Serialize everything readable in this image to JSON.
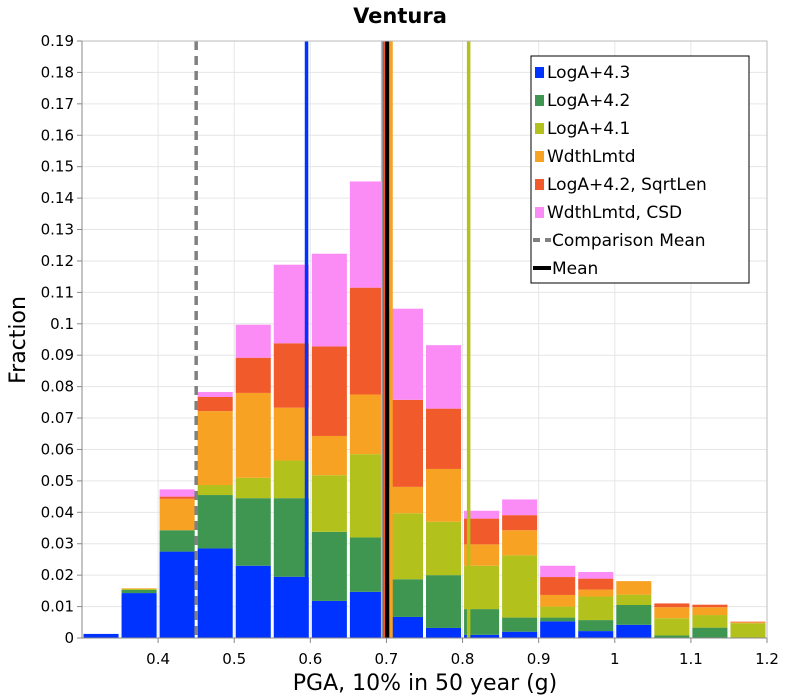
{
  "chart_data": {
    "type": "bar",
    "stacked": true,
    "title": "Ventura",
    "xlabel": "PGA, 10% in 50 year (g)",
    "ylabel": "Fraction",
    "xlim": [
      0.3,
      1.2
    ],
    "ylim": [
      0,
      0.19
    ],
    "grid": true,
    "legend_position": "top-right",
    "x_ticks": [
      {
        "value": 0.4,
        "label": "0.4"
      },
      {
        "value": 0.5,
        "label": "0.5"
      },
      {
        "value": 0.6,
        "label": "0.6"
      },
      {
        "value": 0.7,
        "label": "0.7"
      },
      {
        "value": 0.8,
        "label": "0.8"
      },
      {
        "value": 0.9,
        "label": "0.9"
      },
      {
        "value": 1.0,
        "label": "1"
      },
      {
        "value": 1.1,
        "label": "1.1"
      },
      {
        "value": 1.2,
        "label": "1.2"
      }
    ],
    "y_ticks": [
      {
        "value": 0,
        "label": "0"
      },
      {
        "value": 0.01,
        "label": "0.01"
      },
      {
        "value": 0.02,
        "label": "0.02"
      },
      {
        "value": 0.03,
        "label": "0.03"
      },
      {
        "value": 0.04,
        "label": "0.04"
      },
      {
        "value": 0.05,
        "label": "0.05"
      },
      {
        "value": 0.06,
        "label": "0.06"
      },
      {
        "value": 0.07,
        "label": "0.07"
      },
      {
        "value": 0.08,
        "label": "0.08"
      },
      {
        "value": 0.09,
        "label": "0.09"
      },
      {
        "value": 0.1,
        "label": "0.1"
      },
      {
        "value": 0.11,
        "label": "0.11"
      },
      {
        "value": 0.12,
        "label": "0.12"
      },
      {
        "value": 0.13,
        "label": "0.13"
      },
      {
        "value": 0.14,
        "label": "0.14"
      },
      {
        "value": 0.15,
        "label": "0.15"
      },
      {
        "value": 0.16,
        "label": "0.16"
      },
      {
        "value": 0.17,
        "label": "0.17"
      },
      {
        "value": 0.18,
        "label": "0.18"
      },
      {
        "value": 0.19,
        "label": "0.19"
      }
    ],
    "bins": [
      {
        "x0": 0.3,
        "x1": 0.35
      },
      {
        "x0": 0.35,
        "x1": 0.4
      },
      {
        "x0": 0.4,
        "x1": 0.45
      },
      {
        "x0": 0.45,
        "x1": 0.5
      },
      {
        "x0": 0.5,
        "x1": 0.55
      },
      {
        "x0": 0.55,
        "x1": 0.6
      },
      {
        "x0": 0.6,
        "x1": 0.65
      },
      {
        "x0": 0.65,
        "x1": 0.7
      },
      {
        "x0": 0.7,
        "x1": 0.75
      },
      {
        "x0": 0.75,
        "x1": 0.8
      },
      {
        "x0": 0.8,
        "x1": 0.85
      },
      {
        "x0": 0.85,
        "x1": 0.9
      },
      {
        "x0": 0.9,
        "x1": 0.95
      },
      {
        "x0": 0.95,
        "x1": 1.0
      },
      {
        "x0": 1.0,
        "x1": 1.05
      },
      {
        "x0": 1.05,
        "x1": 1.1
      },
      {
        "x0": 1.1,
        "x1": 1.15
      },
      {
        "x0": 1.15,
        "x1": 1.2
      }
    ],
    "series": [
      {
        "name": "LogA+4.3",
        "color": "#0033ff",
        "values": [
          0.0013,
          0.0143,
          0.0275,
          0.0285,
          0.023,
          0.0195,
          0.0118,
          0.0147,
          0.0067,
          0.0032,
          0.001,
          0.002,
          0.0053,
          0.0022,
          0.0042,
          0.0,
          0.0,
          0.0
        ]
      },
      {
        "name": "LogA+4.2",
        "color": "#3f9651",
        "values": [
          0.0,
          0.001,
          0.0068,
          0.017,
          0.0215,
          0.025,
          0.022,
          0.0173,
          0.012,
          0.0168,
          0.0082,
          0.0045,
          0.0012,
          0.0035,
          0.0063,
          0.0008,
          0.0033,
          0.0
        ]
      },
      {
        "name": "LogA+4.1",
        "color": "#b3c11d",
        "values": [
          0.0,
          0.0003,
          0.0,
          0.0032,
          0.0065,
          0.012,
          0.018,
          0.0265,
          0.021,
          0.017,
          0.0138,
          0.0198,
          0.0035,
          0.0075,
          0.0033,
          0.0055,
          0.004,
          0.0047
        ]
      },
      {
        "name": "WdthLmtd",
        "color": "#f7a223",
        "values": [
          0.0,
          0.0002,
          0.01,
          0.0235,
          0.027,
          0.0168,
          0.0125,
          0.019,
          0.0084,
          0.0168,
          0.0068,
          0.008,
          0.0037,
          0.0022,
          0.0043,
          0.0035,
          0.0025,
          0.0003
        ]
      },
      {
        "name": "LogA+4.2, SqrtLen",
        "color": "#f15a2a",
        "values": [
          0.0,
          0.0,
          0.0007,
          0.0045,
          0.0112,
          0.0205,
          0.0285,
          0.034,
          0.0277,
          0.0192,
          0.0082,
          0.0048,
          0.0057,
          0.0035,
          0.0,
          0.0012,
          0.0008,
          0.0002
        ]
      },
      {
        "name": "WdthLmtd, CSD",
        "color": "#fb8cf6",
        "values": [
          0.0,
          0.0,
          0.0023,
          0.0016,
          0.0105,
          0.025,
          0.0295,
          0.0338,
          0.029,
          0.0202,
          0.0025,
          0.005,
          0.0036,
          0.0021,
          0.0,
          0.0,
          0.0,
          0.0
        ]
      }
    ],
    "vertical_lines": [
      {
        "name": "LogA+4.3",
        "x": 0.595,
        "color": "#0033ff",
        "style": "solid"
      },
      {
        "name": "LogA+4.1",
        "x": 0.808,
        "color": "#b3c11d",
        "style": "solid"
      },
      {
        "name": "WdthLmtd, CSD",
        "x": 0.695,
        "color": "#fb8cf6",
        "style": "solid"
      },
      {
        "name": "LogA+4.2",
        "x": 0.697,
        "color": "#3f9651",
        "style": "solid"
      },
      {
        "name": "LogA+4.2, SqrtLen",
        "x": 0.699,
        "color": "#f15a2a",
        "style": "solid"
      },
      {
        "name": "WdthLmtd",
        "x": 0.706,
        "color": "#f7a223",
        "style": "solid"
      },
      {
        "name": "Mean",
        "x": 0.701,
        "color": "#000000",
        "style": "solid"
      },
      {
        "name": "Comparison Mean",
        "x": 0.45,
        "color": "#808080",
        "style": "dashed"
      }
    ],
    "legend": [
      {
        "label": "LogA+4.3",
        "kind": "box",
        "color": "#0033ff"
      },
      {
        "label": "LogA+4.2",
        "kind": "box",
        "color": "#3f9651"
      },
      {
        "label": "LogA+4.1",
        "kind": "box",
        "color": "#b3c11d"
      },
      {
        "label": "WdthLmtd",
        "kind": "box",
        "color": "#f7a223"
      },
      {
        "label": "LogA+4.2, SqrtLen",
        "kind": "box",
        "color": "#f15a2a"
      },
      {
        "label": "WdthLmtd, CSD",
        "kind": "box",
        "color": "#fb8cf6"
      },
      {
        "label": "Comparison Mean",
        "kind": "dashed",
        "color": "#808080"
      },
      {
        "label": "Mean",
        "kind": "line",
        "color": "#000000"
      }
    ]
  }
}
